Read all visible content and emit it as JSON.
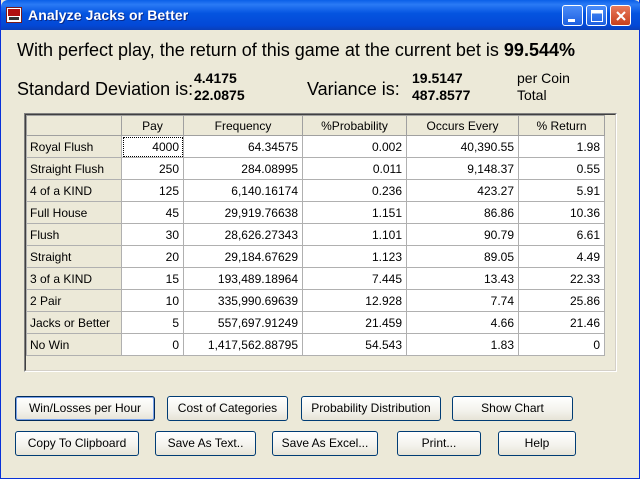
{
  "window": {
    "title": "Analyze Jacks or Better"
  },
  "summary": {
    "headline_text": "With perfect play, the return of this game at the current bet is",
    "return_pct": "99.544%",
    "std_label": "Standard Deviation is:",
    "std_per_coin": "4.4175",
    "std_total": "22.0875",
    "var_label": "Variance is:",
    "var_per_coin": "19.5147",
    "var_total": "487.8577",
    "per_coin_label": "per Coin",
    "total_label": "Total"
  },
  "table": {
    "columns": [
      "Pay",
      "Frequency",
      "%Probability",
      "Occurs Every",
      "% Return"
    ],
    "rows": [
      {
        "hand": "Royal Flush",
        "pay": "4000",
        "frequency": "64.34575",
        "probability": "0.002",
        "occurs": "40,390.55",
        "ret": "1.98"
      },
      {
        "hand": "Straight Flush",
        "pay": "250",
        "frequency": "284.08995",
        "probability": "0.011",
        "occurs": "9,148.37",
        "ret": "0.55"
      },
      {
        "hand": "4 of a KIND",
        "pay": "125",
        "frequency": "6,140.16174",
        "probability": "0.236",
        "occurs": "423.27",
        "ret": "5.91"
      },
      {
        "hand": "Full House",
        "pay": "45",
        "frequency": "29,919.76638",
        "probability": "1.151",
        "occurs": "86.86",
        "ret": "10.36"
      },
      {
        "hand": "Flush",
        "pay": "30",
        "frequency": "28,626.27343",
        "probability": "1.101",
        "occurs": "90.79",
        "ret": "6.61"
      },
      {
        "hand": "Straight",
        "pay": "20",
        "frequency": "29,184.67629",
        "probability": "1.123",
        "occurs": "89.05",
        "ret": "4.49"
      },
      {
        "hand": "3 of a KIND",
        "pay": "15",
        "frequency": "193,489.18964",
        "probability": "7.445",
        "occurs": "13.43",
        "ret": "22.33"
      },
      {
        "hand": "2 Pair",
        "pay": "10",
        "frequency": "335,990.69639",
        "probability": "12.928",
        "occurs": "7.74",
        "ret": "25.86"
      },
      {
        "hand": "Jacks or Better",
        "pay": "5",
        "frequency": "557,697.91249",
        "probability": "21.459",
        "occurs": "4.66",
        "ret": "21.46"
      },
      {
        "hand": "No Win",
        "pay": "0",
        "frequency": "1,417,562.88795",
        "probability": "54.543",
        "occurs": "1.83",
        "ret": "0"
      }
    ]
  },
  "buttons": {
    "win_loss": "Win/Losses per Hour",
    "cost_categories": "Cost of Categories",
    "prob_dist": "Probability Distribution",
    "show_chart": "Show Chart",
    "copy_clipboard": "Copy To Clipboard",
    "save_text": "Save As Text..",
    "save_excel": "Save As Excel...",
    "print": "Print...",
    "help": "Help"
  },
  "icons": {
    "app": "video-poker-app-icon",
    "minimize": "minimize-icon",
    "maximize": "maximize-icon",
    "close": "close-icon"
  }
}
